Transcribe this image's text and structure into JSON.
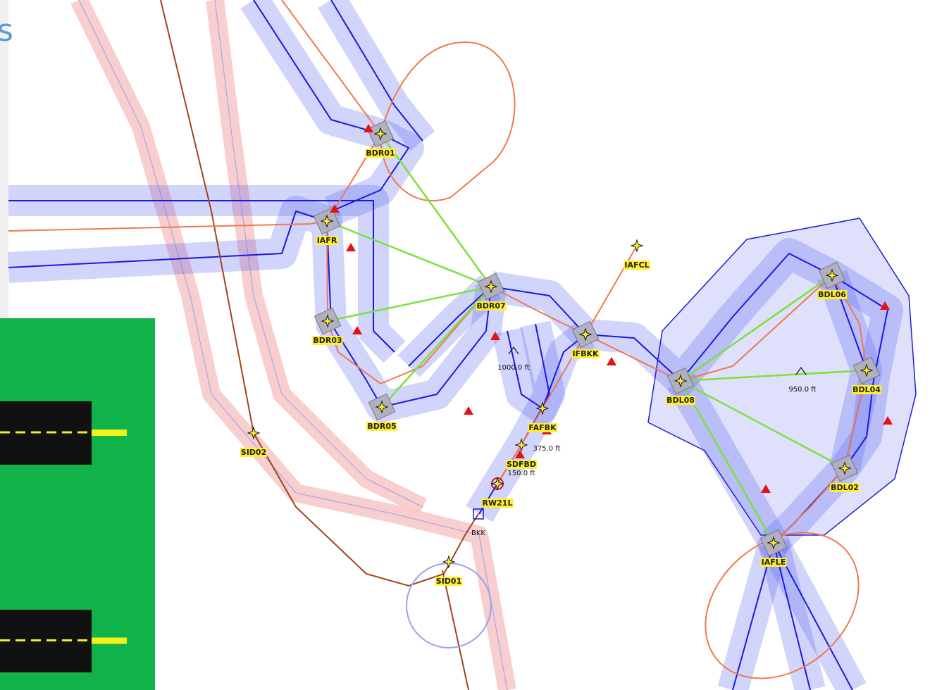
{
  "corner_text": "s",
  "waypoints": [
    "BDR01",
    "IAFR",
    "BDR03",
    "BDR05",
    "BDR07",
    "IFBKK",
    "IAFCL",
    "BDL06",
    "BDL04",
    "BDL08",
    "BDL02",
    "IAFLE",
    "FAFBK",
    "SDFBD",
    "RW21L",
    "SID01",
    "SID02"
  ],
  "navaid": "BKK",
  "altitudes": [
    "1000.0 ft",
    "950.0 ft",
    "375.0 ft",
    "150.0 ft"
  ]
}
